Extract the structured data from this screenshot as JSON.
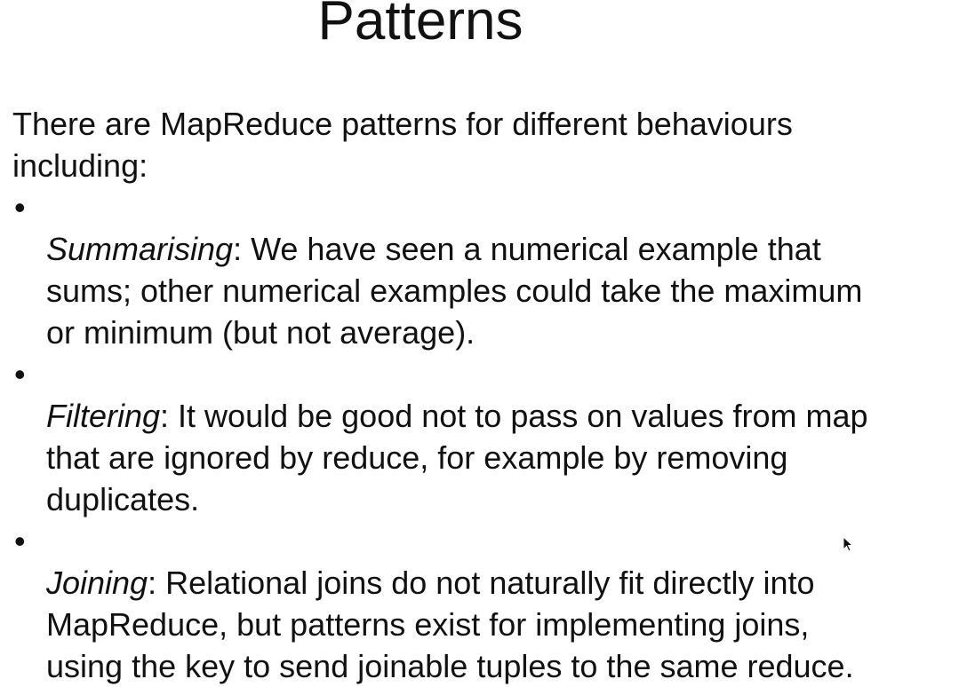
{
  "slide": {
    "title": "Patterns",
    "intro": "There are MapReduce patterns for different behaviours\nincluding:",
    "bullets": [
      {
        "term": "Summarising",
        "text": ": We have seen a numerical example that\nsums; other numerical examples could take the maximum\nor minimum (but not average)."
      },
      {
        "term": "Filtering",
        "text": ": It would be good not to pass on values from map\nthat are ignored by reduce, for example by removing\nduplicates."
      },
      {
        "term": "Joining",
        "text": ": Relational joins do not naturally fit directly into\nMapReduce, but patterns exist for implementing joins,\nusing the key to send joinable tuples to the same reduce."
      }
    ],
    "bullet_glyph": "•"
  },
  "colors": {
    "background": "#ffffff",
    "text": "#111111"
  },
  "icons": {
    "cursor": "mouse-pointer-icon"
  }
}
